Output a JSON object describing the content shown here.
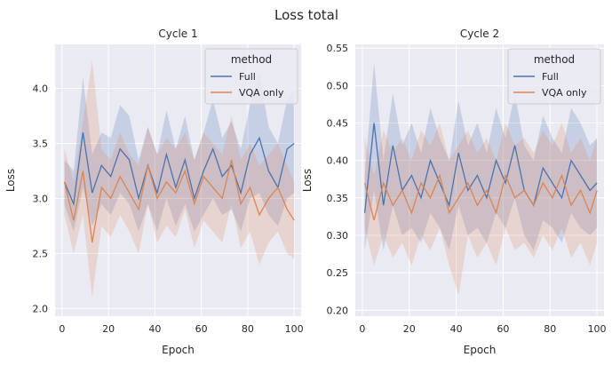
{
  "figure": {
    "title": "Loss total"
  },
  "colors": {
    "full": "#4c72b0",
    "vqa": "#dd8452",
    "panel_bg": "#eaeaf2",
    "grid": "#ffffff"
  },
  "chart_data": [
    {
      "type": "line",
      "title": "Cycle 1",
      "xlabel": "Epoch",
      "ylabel": "Loss",
      "xlim": [
        -3,
        103
      ],
      "ylim": [
        1.93,
        4.4
      ],
      "xticks": [
        0,
        20,
        40,
        60,
        80,
        100
      ],
      "yticks": [
        2.0,
        2.5,
        3.0,
        3.5,
        4.0
      ],
      "ytick_labels": [
        "2.0",
        "2.5",
        "3.0",
        "3.5",
        "4.0"
      ],
      "grid": true,
      "legend": {
        "title": "method",
        "placement": "upper right"
      },
      "band": "shaded confidence band around each series",
      "series": [
        {
          "name": "Full",
          "color": "#4c72b0",
          "x": [
            1,
            5,
            9,
            13,
            17,
            21,
            25,
            29,
            33,
            37,
            41,
            45,
            49,
            53,
            57,
            61,
            65,
            69,
            73,
            77,
            81,
            85,
            89,
            93,
            97,
            100
          ],
          "y": [
            3.15,
            2.95,
            3.6,
            3.05,
            3.3,
            3.2,
            3.45,
            3.35,
            3.0,
            3.3,
            3.05,
            3.4,
            3.1,
            3.35,
            3.0,
            3.25,
            3.45,
            3.2,
            3.3,
            3.05,
            3.4,
            3.55,
            3.25,
            3.1,
            3.45,
            3.5
          ],
          "lower": [
            2.95,
            2.7,
            3.1,
            2.75,
            2.95,
            2.85,
            3.05,
            2.95,
            2.7,
            2.95,
            2.7,
            3.0,
            2.75,
            2.95,
            2.7,
            2.85,
            3.0,
            2.85,
            2.9,
            2.7,
            3.0,
            3.05,
            2.85,
            2.75,
            3.0,
            3.05
          ],
          "upper": [
            3.35,
            3.25,
            4.1,
            3.4,
            3.6,
            3.55,
            3.85,
            3.75,
            3.35,
            3.65,
            3.4,
            3.8,
            3.45,
            3.75,
            3.35,
            3.6,
            3.9,
            3.55,
            3.7,
            3.45,
            3.85,
            4.15,
            3.65,
            3.5,
            3.9,
            4.0
          ]
        },
        {
          "name": "VQA only",
          "color": "#dd8452",
          "x": [
            1,
            5,
            9,
            13,
            17,
            21,
            25,
            29,
            33,
            37,
            41,
            45,
            49,
            53,
            57,
            61,
            65,
            69,
            73,
            77,
            81,
            85,
            89,
            93,
            97,
            100
          ],
          "y": [
            3.15,
            2.8,
            3.25,
            2.6,
            3.1,
            3.0,
            3.2,
            3.05,
            2.9,
            3.3,
            3.0,
            3.15,
            3.05,
            3.25,
            2.95,
            3.2,
            3.1,
            3.0,
            3.35,
            2.95,
            3.1,
            2.85,
            3.0,
            3.1,
            2.9,
            2.8
          ],
          "lower": [
            2.85,
            2.5,
            2.85,
            2.1,
            2.75,
            2.65,
            2.85,
            2.7,
            2.5,
            2.95,
            2.6,
            2.75,
            2.65,
            2.9,
            2.55,
            2.8,
            2.7,
            2.6,
            2.95,
            2.55,
            2.7,
            2.4,
            2.6,
            2.7,
            2.5,
            2.45
          ],
          "upper": [
            3.45,
            3.15,
            3.7,
            4.25,
            3.45,
            3.35,
            3.6,
            3.4,
            3.3,
            3.65,
            3.4,
            3.55,
            3.45,
            3.6,
            3.35,
            3.6,
            3.5,
            3.4,
            3.75,
            3.35,
            3.5,
            3.3,
            3.4,
            3.5,
            3.3,
            3.15
          ]
        }
      ]
    },
    {
      "type": "line",
      "title": "Cycle 2",
      "xlabel": "Epoch",
      "ylabel": "Loss",
      "xlim": [
        -3,
        103
      ],
      "ylim": [
        0.192,
        0.555
      ],
      "xticks": [
        0,
        20,
        40,
        60,
        80,
        100
      ],
      "yticks": [
        0.2,
        0.25,
        0.3,
        0.35,
        0.4,
        0.45,
        0.5,
        0.55
      ],
      "ytick_labels": [
        "0.20",
        "0.25",
        "0.30",
        "0.35",
        "0.40",
        "0.45",
        "0.50",
        "0.55"
      ],
      "grid": true,
      "legend": {
        "title": "method",
        "placement": "upper right"
      },
      "band": "shaded confidence band around each series",
      "series": [
        {
          "name": "Full",
          "color": "#4c72b0",
          "x": [
            1,
            5,
            9,
            13,
            17,
            21,
            25,
            29,
            33,
            37,
            41,
            45,
            49,
            53,
            57,
            61,
            65,
            69,
            73,
            77,
            81,
            85,
            89,
            93,
            97,
            100
          ],
          "y": [
            0.33,
            0.45,
            0.34,
            0.42,
            0.36,
            0.38,
            0.35,
            0.4,
            0.37,
            0.34,
            0.41,
            0.36,
            0.38,
            0.35,
            0.4,
            0.37,
            0.42,
            0.36,
            0.34,
            0.39,
            0.37,
            0.35,
            0.4,
            0.38,
            0.36,
            0.37
          ],
          "lower": [
            0.28,
            0.36,
            0.28,
            0.34,
            0.3,
            0.31,
            0.29,
            0.33,
            0.31,
            0.28,
            0.34,
            0.3,
            0.31,
            0.29,
            0.33,
            0.31,
            0.35,
            0.3,
            0.28,
            0.32,
            0.31,
            0.29,
            0.33,
            0.31,
            0.3,
            0.31
          ],
          "upper": [
            0.38,
            0.53,
            0.4,
            0.49,
            0.42,
            0.45,
            0.41,
            0.47,
            0.43,
            0.4,
            0.48,
            0.42,
            0.45,
            0.41,
            0.47,
            0.43,
            0.49,
            0.42,
            0.4,
            0.46,
            0.43,
            0.41,
            0.47,
            0.45,
            0.42,
            0.43
          ]
        },
        {
          "name": "VQA only",
          "color": "#dd8452",
          "x": [
            1,
            5,
            9,
            13,
            17,
            21,
            25,
            29,
            33,
            37,
            41,
            45,
            49,
            53,
            57,
            61,
            65,
            69,
            73,
            77,
            81,
            85,
            89,
            93,
            97,
            100
          ],
          "y": [
            0.37,
            0.32,
            0.37,
            0.34,
            0.36,
            0.33,
            0.37,
            0.35,
            0.38,
            0.33,
            0.35,
            0.37,
            0.34,
            0.36,
            0.33,
            0.38,
            0.35,
            0.36,
            0.34,
            0.37,
            0.35,
            0.38,
            0.34,
            0.36,
            0.33,
            0.36
          ],
          "lower": [
            0.31,
            0.26,
            0.3,
            0.27,
            0.29,
            0.26,
            0.3,
            0.28,
            0.31,
            0.26,
            0.22,
            0.3,
            0.27,
            0.29,
            0.26,
            0.31,
            0.28,
            0.29,
            0.27,
            0.3,
            0.28,
            0.31,
            0.27,
            0.29,
            0.26,
            0.29
          ],
          "upper": [
            0.43,
            0.38,
            0.44,
            0.41,
            0.43,
            0.4,
            0.44,
            0.42,
            0.45,
            0.4,
            0.42,
            0.44,
            0.41,
            0.43,
            0.4,
            0.45,
            0.42,
            0.43,
            0.41,
            0.44,
            0.42,
            0.45,
            0.41,
            0.43,
            0.4,
            0.43
          ]
        }
      ]
    }
  ]
}
